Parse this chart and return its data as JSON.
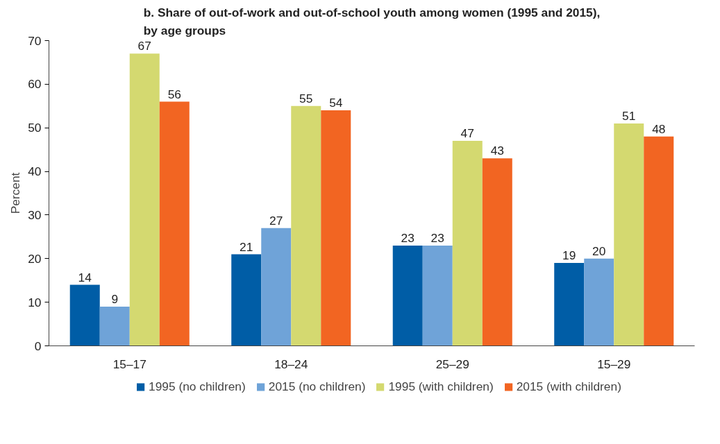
{
  "chart_data": {
    "type": "bar",
    "title": "b. Share of out-of-work and out-of-school youth among women (1995 and 2015), by age groups",
    "ylabel": "Percent",
    "categories": [
      "15–17",
      "18–24",
      "25–29",
      "15–29"
    ],
    "series": [
      {
        "name": "1995 (no children)",
        "color": "#005da6",
        "values": [
          14,
          21,
          23,
          19
        ]
      },
      {
        "name": "2015 (no children)",
        "color": "#6fa3d8",
        "values": [
          9,
          27,
          23,
          20
        ]
      },
      {
        "name": "1995 (with children)",
        "color": "#d4d970",
        "values": [
          67,
          55,
          47,
          51
        ]
      },
      {
        "name": "2015 (with children)",
        "color": "#f26522",
        "values": [
          56,
          54,
          43,
          48
        ]
      }
    ],
    "ylim": [
      0,
      70
    ],
    "yticks": [
      0,
      10,
      20,
      30,
      40,
      50,
      60,
      70
    ],
    "data_labels": true,
    "grid": false,
    "legend": "bottom"
  }
}
